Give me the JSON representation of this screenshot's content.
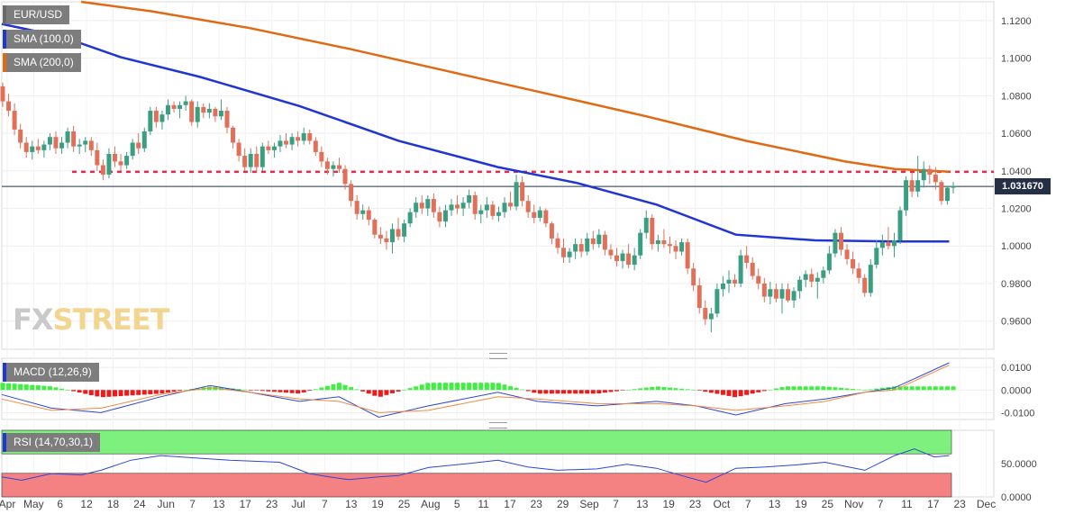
{
  "indicators": {
    "symbol": "EUR/USD",
    "sma100": "SMA (100,0)",
    "sma200": "SMA (200,0)",
    "macd": "MACD (12,26,9)",
    "rsi": "RSI (14,70,30,1)"
  },
  "watermark": {
    "fx": "FX",
    "street": "STREET"
  },
  "colors": {
    "up": "#3a9e82",
    "down": "#e0705a",
    "sma100": "#1f35d4",
    "sma200": "#e06a14",
    "resistance": "#e8284a",
    "macd_line": "#2b46d8",
    "signal_line": "#f08a3c",
    "hist_pos": "#3ef03e",
    "hist_neg": "#f01818",
    "rsi_line": "#2b46d8",
    "overbought": "#7ef07e",
    "oversold": "#f58282"
  },
  "chart_data": {
    "type": "candlestick",
    "x_tick_labels": [
      "Apr",
      "May",
      "6",
      "12",
      "18",
      "24",
      "Jun",
      "7",
      "13",
      "17",
      "23",
      "Jul",
      "7",
      "13",
      "19",
      "25",
      "Aug",
      "5",
      "11",
      "17",
      "23",
      "29",
      "Sep",
      "7",
      "13",
      "19",
      "23",
      "Oct",
      "7",
      "13",
      "19",
      "25",
      "Nov",
      "7",
      "11",
      "17",
      "23",
      "Dec"
    ],
    "y_ticks": [
      "1.1200",
      "1.1000",
      "1.0800",
      "1.0600",
      "1.0400",
      "1.0200",
      "1.0000",
      "0.9800",
      "0.9600"
    ],
    "ylim": [
      0.945,
      1.13
    ],
    "current_price": "1.031670",
    "current_value": 1.03167,
    "resistance_level": 1.0395,
    "candles": [
      [
        1.085,
        1.087,
        1.074,
        1.077
      ],
      [
        1.077,
        1.081,
        1.069,
        1.072
      ],
      [
        1.072,
        1.076,
        1.059,
        1.062
      ],
      [
        1.062,
        1.065,
        1.052,
        1.055
      ],
      [
        1.055,
        1.058,
        1.047,
        1.05
      ],
      [
        1.05,
        1.056,
        1.046,
        1.053
      ],
      [
        1.053,
        1.057,
        1.049,
        1.051
      ],
      [
        1.051,
        1.056,
        1.047,
        1.054
      ],
      [
        1.054,
        1.06,
        1.051,
        1.058
      ],
      [
        1.058,
        1.061,
        1.049,
        1.052
      ],
      [
        1.052,
        1.058,
        1.049,
        1.055
      ],
      [
        1.055,
        1.063,
        1.052,
        1.061
      ],
      [
        1.061,
        1.064,
        1.05,
        1.053
      ],
      [
        1.053,
        1.057,
        1.049,
        1.054
      ],
      [
        1.054,
        1.058,
        1.05,
        1.056
      ],
      [
        1.056,
        1.058,
        1.048,
        1.051
      ],
      [
        1.051,
        1.055,
        1.04,
        1.043
      ],
      [
        1.043,
        1.046,
        1.035,
        1.038
      ],
      [
        1.038,
        1.052,
        1.036,
        1.049
      ],
      [
        1.049,
        1.053,
        1.042,
        1.045
      ],
      [
        1.045,
        1.049,
        1.04,
        1.043
      ],
      [
        1.043,
        1.05,
        1.041,
        1.048
      ],
      [
        1.048,
        1.057,
        1.046,
        1.055
      ],
      [
        1.055,
        1.06,
        1.049,
        1.052
      ],
      [
        1.052,
        1.063,
        1.05,
        1.061
      ],
      [
        1.061,
        1.074,
        1.059,
        1.072
      ],
      [
        1.072,
        1.074,
        1.063,
        1.066
      ],
      [
        1.066,
        1.072,
        1.062,
        1.07
      ],
      [
        1.07,
        1.078,
        1.067,
        1.075
      ],
      [
        1.075,
        1.077,
        1.071,
        1.073
      ],
      [
        1.073,
        1.077,
        1.068,
        1.075
      ],
      [
        1.075,
        1.08,
        1.072,
        1.077
      ],
      [
        1.077,
        1.078,
        1.064,
        1.066
      ],
      [
        1.066,
        1.077,
        1.063,
        1.074
      ],
      [
        1.074,
        1.076,
        1.068,
        1.071
      ],
      [
        1.071,
        1.076,
        1.068,
        1.073
      ],
      [
        1.073,
        1.074,
        1.066,
        1.069
      ],
      [
        1.069,
        1.078,
        1.067,
        1.072
      ],
      [
        1.072,
        1.074,
        1.06,
        1.063
      ],
      [
        1.063,
        1.064,
        1.052,
        1.055
      ],
      [
        1.055,
        1.057,
        1.045,
        1.048
      ],
      [
        1.048,
        1.052,
        1.04,
        1.042
      ],
      [
        1.042,
        1.052,
        1.039,
        1.049
      ],
      [
        1.049,
        1.053,
        1.039,
        1.042
      ],
      [
        1.042,
        1.055,
        1.04,
        1.053
      ],
      [
        1.053,
        1.056,
        1.049,
        1.051
      ],
      [
        1.051,
        1.055,
        1.047,
        1.053
      ],
      [
        1.053,
        1.059,
        1.05,
        1.056
      ],
      [
        1.056,
        1.06,
        1.052,
        1.054
      ],
      [
        1.054,
        1.06,
        1.051,
        1.058
      ],
      [
        1.058,
        1.061,
        1.053,
        1.056
      ],
      [
        1.056,
        1.063,
        1.054,
        1.06
      ],
      [
        1.06,
        1.062,
        1.054,
        1.056
      ],
      [
        1.056,
        1.058,
        1.048,
        1.05
      ],
      [
        1.05,
        1.053,
        1.042,
        1.045
      ],
      [
        1.045,
        1.047,
        1.038,
        1.041
      ],
      [
        1.041,
        1.045,
        1.037,
        1.043
      ],
      [
        1.043,
        1.047,
        1.039,
        1.041
      ],
      [
        1.041,
        1.043,
        1.03,
        1.033
      ],
      [
        1.033,
        1.035,
        1.021,
        1.024
      ],
      [
        1.024,
        1.027,
        1.014,
        1.017
      ],
      [
        1.017,
        1.022,
        1.014,
        1.019
      ],
      [
        1.019,
        1.021,
        1.011,
        1.014
      ],
      [
        1.014,
        1.015,
        1.004,
        1.006
      ],
      [
        1.006,
        1.01,
        1.001,
        1.004
      ],
      [
        1.004,
        1.008,
        0.998,
        1.002
      ],
      [
        1.002,
        1.012,
        0.996,
        1.009
      ],
      [
        1.009,
        1.015,
        1.003,
        1.005
      ],
      [
        1.005,
        1.014,
        1.002,
        1.012
      ],
      [
        1.012,
        1.02,
        1.01,
        1.018
      ],
      [
        1.018,
        1.026,
        1.015,
        1.023
      ],
      [
        1.023,
        1.027,
        1.017,
        1.02
      ],
      [
        1.02,
        1.027,
        1.016,
        1.025
      ],
      [
        1.025,
        1.028,
        1.015,
        1.018
      ],
      [
        1.018,
        1.021,
        1.01,
        1.013
      ],
      [
        1.013,
        1.022,
        1.01,
        1.019
      ],
      [
        1.019,
        1.025,
        1.016,
        1.022
      ],
      [
        1.022,
        1.027,
        1.017,
        1.02
      ],
      [
        1.02,
        1.026,
        1.016,
        1.023
      ],
      [
        1.023,
        1.03,
        1.02,
        1.027
      ],
      [
        1.027,
        1.029,
        1.014,
        1.017
      ],
      [
        1.017,
        1.022,
        1.012,
        1.019
      ],
      [
        1.019,
        1.026,
        1.015,
        1.022
      ],
      [
        1.022,
        1.024,
        1.014,
        1.016
      ],
      [
        1.016,
        1.021,
        1.013,
        1.018
      ],
      [
        1.018,
        1.026,
        1.015,
        1.023
      ],
      [
        1.023,
        1.029,
        1.019,
        1.021
      ],
      [
        1.021,
        1.038,
        1.019,
        1.034
      ],
      [
        1.034,
        1.037,
        1.021,
        1.024
      ],
      [
        1.024,
        1.027,
        1.015,
        1.018
      ],
      [
        1.018,
        1.022,
        1.012,
        1.015
      ],
      [
        1.015,
        1.021,
        1.013,
        1.019
      ],
      [
        1.019,
        1.02,
        1.01,
        1.012
      ],
      [
        1.012,
        1.013,
        1.001,
        1.004
      ],
      [
        1.004,
        1.007,
        0.996,
        0.999
      ],
      [
        0.999,
        1.004,
        0.991,
        0.994
      ],
      [
        0.994,
        0.999,
        0.991,
        0.997
      ],
      [
        0.997,
        1.004,
        0.993,
        1.001
      ],
      [
        1.001,
        1.004,
        0.994,
        0.997
      ],
      [
        0.997,
        1.007,
        0.995,
        1.004
      ],
      [
        1.004,
        1.008,
        0.998,
        1.001
      ],
      [
        1.001,
        1.009,
        0.999,
        1.006
      ],
      [
        1.006,
        1.008,
        0.995,
        0.998
      ],
      [
        0.998,
        1.001,
        0.993,
        0.995
      ],
      [
        0.995,
        0.999,
        0.989,
        0.992
      ],
      [
        0.992,
        0.998,
        0.988,
        0.996
      ],
      [
        0.996,
        1.001,
        0.988,
        0.99
      ],
      [
        0.99,
        0.999,
        0.987,
        0.995
      ],
      [
        0.995,
        1.009,
        0.993,
        1.007
      ],
      [
        1.007,
        1.019,
        1.004,
        1.015
      ],
      [
        1.015,
        1.017,
        0.998,
        1.001
      ],
      [
        1.001,
        1.006,
        0.997,
        1.003
      ],
      [
        1.003,
        1.009,
        0.999,
        1.001
      ],
      [
        1.001,
        1.005,
        0.996,
        1.0
      ],
      [
        1.0,
        1.003,
        0.993,
        0.997
      ],
      [
        0.997,
        1.004,
        0.995,
        1.002
      ],
      [
        1.002,
        1.004,
        0.985,
        0.988
      ],
      [
        0.988,
        0.991,
        0.976,
        0.979
      ],
      [
        0.979,
        0.983,
        0.964,
        0.967
      ],
      [
        0.967,
        0.971,
        0.958,
        0.961
      ],
      [
        0.961,
        0.967,
        0.954,
        0.964
      ],
      [
        0.964,
        0.98,
        0.962,
        0.977
      ],
      [
        0.977,
        0.984,
        0.973,
        0.98
      ],
      [
        0.98,
        0.987,
        0.975,
        0.982
      ],
      [
        0.982,
        0.985,
        0.978,
        0.98
      ],
      [
        0.98,
        0.998,
        0.978,
        0.995
      ],
      [
        0.995,
        1.0,
        0.988,
        0.991
      ],
      [
        0.991,
        0.994,
        0.982,
        0.984
      ],
      [
        0.984,
        0.988,
        0.977,
        0.98
      ],
      [
        0.98,
        0.983,
        0.97,
        0.973
      ],
      [
        0.973,
        0.981,
        0.969,
        0.977
      ],
      [
        0.977,
        0.98,
        0.97,
        0.972
      ],
      [
        0.972,
        0.98,
        0.964,
        0.977
      ],
      [
        0.977,
        0.98,
        0.97,
        0.971
      ],
      [
        0.971,
        0.978,
        0.967,
        0.976
      ],
      [
        0.976,
        0.984,
        0.972,
        0.982
      ],
      [
        0.982,
        0.987,
        0.978,
        0.985
      ],
      [
        0.985,
        0.988,
        0.978,
        0.981
      ],
      [
        0.981,
        0.986,
        0.972,
        0.983
      ],
      [
        0.983,
        0.989,
        0.98,
        0.987
      ],
      [
        0.987,
        1.0,
        0.985,
        0.996
      ],
      [
        0.996,
        1.009,
        0.994,
        1.007
      ],
      [
        1.007,
        1.01,
        0.995,
        0.998
      ],
      [
        0.998,
        1.001,
        0.99,
        0.993
      ],
      [
        0.993,
        0.997,
        0.985,
        0.988
      ],
      [
        0.988,
        0.991,
        0.98,
        0.983
      ],
      [
        0.983,
        0.985,
        0.973,
        0.975
      ],
      [
        0.975,
        0.993,
        0.973,
        0.99
      ],
      [
        0.99,
        1.003,
        0.988,
        0.999
      ],
      [
        0.999,
        1.006,
        0.995,
        1.002
      ],
      [
        1.002,
        1.01,
        0.998,
        1.0
      ],
      [
        1.0,
        1.007,
        0.994,
        1.003
      ],
      [
        1.003,
        1.021,
        1.001,
        1.019
      ],
      [
        1.019,
        1.037,
        1.016,
        1.035
      ],
      [
        1.035,
        1.039,
        1.026,
        1.029
      ],
      [
        1.029,
        1.048,
        1.026,
        1.035
      ],
      [
        1.035,
        1.045,
        1.031,
        1.041
      ],
      [
        1.041,
        1.043,
        1.033,
        1.038
      ],
      [
        1.038,
        1.042,
        1.03,
        1.034
      ],
      [
        1.034,
        1.035,
        1.022,
        1.024
      ],
      [
        1.024,
        1.032,
        1.022,
        1.031
      ],
      [
        1.031,
        1.034,
        1.028,
        1.032
      ]
    ],
    "sma100_points": [
      [
        0,
        1.1182
      ],
      [
        0.06,
        1.1115
      ],
      [
        0.12,
        1.1005
      ],
      [
        0.2,
        1.09
      ],
      [
        0.3,
        1.0745
      ],
      [
        0.4,
        1.056
      ],
      [
        0.5,
        1.042
      ],
      [
        0.58,
        1.0335
      ],
      [
        0.66,
        1.022
      ],
      [
        0.74,
        1.006
      ],
      [
        0.82,
        1.003
      ],
      [
        0.9,
        1.0024
      ],
      [
        0.955,
        1.0024
      ]
    ],
    "sma200_points": [
      [
        0.08,
        1.13
      ],
      [
        0.15,
        1.125
      ],
      [
        0.25,
        1.116
      ],
      [
        0.35,
        1.105
      ],
      [
        0.45,
        1.093
      ],
      [
        0.55,
        1.081
      ],
      [
        0.65,
        1.069
      ],
      [
        0.75,
        1.056
      ],
      [
        0.85,
        1.045
      ],
      [
        0.9,
        1.041
      ],
      [
        0.955,
        1.0395
      ]
    ],
    "macd_yticks": [
      "0.0100",
      "0.0000",
      "-0.0100"
    ],
    "macd_ylim": [
      -0.013,
      0.014
    ],
    "macd_line": [
      [
        0,
        -0.002
      ],
      [
        0.05,
        -0.008
      ],
      [
        0.1,
        -0.01
      ],
      [
        0.16,
        -0.003
      ],
      [
        0.21,
        0.002
      ],
      [
        0.25,
        -0.001
      ],
      [
        0.3,
        -0.005
      ],
      [
        0.34,
        -0.003
      ],
      [
        0.38,
        -0.012
      ],
      [
        0.43,
        -0.007
      ],
      [
        0.5,
        -0.001
      ],
      [
        0.54,
        -0.005
      ],
      [
        0.6,
        -0.007
      ],
      [
        0.66,
        -0.005
      ],
      [
        0.7,
        -0.007
      ],
      [
        0.74,
        -0.011
      ],
      [
        0.79,
        -0.006
      ],
      [
        0.83,
        -0.004
      ],
      [
        0.87,
        -0.001
      ],
      [
        0.9,
        0.001
      ],
      [
        0.92,
        0.005
      ],
      [
        0.955,
        0.012
      ]
    ],
    "signal_line": [
      [
        0,
        -0.004
      ],
      [
        0.05,
        -0.009
      ],
      [
        0.1,
        -0.008
      ],
      [
        0.16,
        -0.002
      ],
      [
        0.21,
        0.001
      ],
      [
        0.25,
        -0.001
      ],
      [
        0.3,
        -0.004
      ],
      [
        0.34,
        -0.005
      ],
      [
        0.38,
        -0.01
      ],
      [
        0.43,
        -0.009
      ],
      [
        0.5,
        -0.003
      ],
      [
        0.54,
        -0.004
      ],
      [
        0.6,
        -0.006
      ],
      [
        0.66,
        -0.006
      ],
      [
        0.7,
        -0.007
      ],
      [
        0.74,
        -0.009
      ],
      [
        0.79,
        -0.007
      ],
      [
        0.83,
        -0.005
      ],
      [
        0.87,
        -0.001
      ],
      [
        0.9,
        0.0
      ],
      [
        0.92,
        0.004
      ],
      [
        0.955,
        0.011
      ]
    ],
    "rsi_yticks": [
      "50.0000",
      "0.0000"
    ],
    "rsi_ylim": [
      0,
      100
    ],
    "rsi_overbought": 70,
    "rsi_oversold": 30,
    "rsi_line": [
      [
        0,
        30
      ],
      [
        0.02,
        25
      ],
      [
        0.05,
        35
      ],
      [
        0.08,
        33
      ],
      [
        0.1,
        40
      ],
      [
        0.13,
        55
      ],
      [
        0.16,
        62
      ],
      [
        0.2,
        58
      ],
      [
        0.23,
        55
      ],
      [
        0.28,
        52
      ],
      [
        0.31,
        35
      ],
      [
        0.33,
        30
      ],
      [
        0.35,
        26
      ],
      [
        0.38,
        30
      ],
      [
        0.4,
        32
      ],
      [
        0.43,
        44
      ],
      [
        0.47,
        50
      ],
      [
        0.5,
        55
      ],
      [
        0.53,
        45
      ],
      [
        0.56,
        40
      ],
      [
        0.6,
        42
      ],
      [
        0.63,
        49
      ],
      [
        0.66,
        43
      ],
      [
        0.69,
        30
      ],
      [
        0.71,
        22
      ],
      [
        0.74,
        43
      ],
      [
        0.77,
        45
      ],
      [
        0.8,
        48
      ],
      [
        0.83,
        52
      ],
      [
        0.85,
        46
      ],
      [
        0.87,
        40
      ],
      [
        0.9,
        62
      ],
      [
        0.92,
        72
      ],
      [
        0.94,
        60
      ],
      [
        0.955,
        62
      ]
    ]
  }
}
